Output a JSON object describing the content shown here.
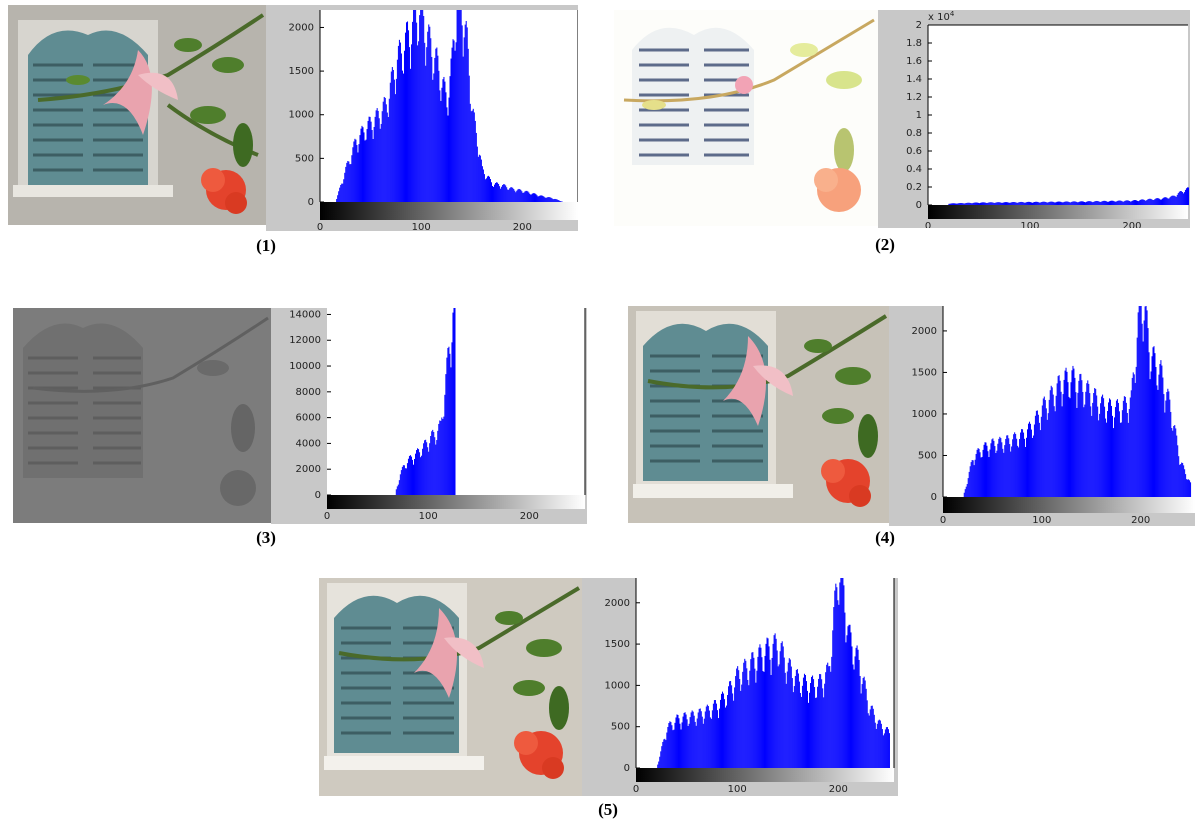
{
  "colors": {
    "histogram_bar": "#0000ff",
    "panel_bg": "#c8c8c8",
    "plot_bg": "#ffffff",
    "wall_gray": "#b7b4ad",
    "shutter_teal": "#5f8c92",
    "hibiscus_red": "#e4432c",
    "hibiscus_pink": "#e9a3ae",
    "leaf_green": "#4f7e2c"
  },
  "captions": [
    "(1)",
    "(2)",
    "(3)",
    "(4)",
    "(5)"
  ],
  "chart_data": [
    {
      "type": "bar",
      "caption": "(1)",
      "xlim": [
        0,
        255
      ],
      "ylim": [
        0,
        2200
      ],
      "xticks": [
        0,
        100,
        200
      ],
      "yticks": [
        0,
        500,
        1000,
        1500,
        2000
      ],
      "x": [
        15,
        25,
        35,
        45,
        55,
        65,
        75,
        85,
        95,
        100,
        105,
        115,
        125,
        130,
        135,
        140,
        145,
        150,
        160,
        170,
        180,
        190,
        200,
        210,
        220,
        230,
        240
      ],
      "values": [
        0,
        350,
        650,
        800,
        900,
        1050,
        1500,
        1750,
        2000,
        2100,
        1800,
        1500,
        1100,
        1500,
        2200,
        2100,
        1700,
        1000,
        350,
        200,
        180,
        140,
        120,
        90,
        60,
        40,
        0
      ]
    },
    {
      "type": "bar",
      "caption": "(2)",
      "xlim": [
        0,
        255
      ],
      "ylim": [
        0,
        20000
      ],
      "xticks": [
        0,
        100,
        200
      ],
      "yticks": [
        "0",
        "0.2",
        "0.4",
        "0.6",
        "0.8",
        "1",
        "1.2",
        "1.4",
        "1.6",
        "1.8",
        "2"
      ],
      "ytick_values": [
        0,
        2000,
        4000,
        6000,
        8000,
        10000,
        12000,
        14000,
        16000,
        18000,
        20000
      ],
      "y_multiplier": "x 10",
      "y_multiplier_exp": "4",
      "x": [
        20,
        50,
        100,
        150,
        200,
        230,
        240,
        245,
        250,
        255
      ],
      "values": [
        150,
        250,
        300,
        350,
        450,
        700,
        900,
        1200,
        1500,
        1700
      ]
    },
    {
      "type": "bar",
      "caption": "(3)",
      "xlim": [
        0,
        255
      ],
      "ylim": [
        0,
        14500
      ],
      "xticks": [
        0,
        100,
        200
      ],
      "yticks": [
        0,
        2000,
        4000,
        6000,
        8000,
        10000,
        12000,
        14000
      ],
      "x": [
        68,
        72,
        76,
        80,
        84,
        88,
        92,
        96,
        100,
        104,
        108,
        112,
        126
      ],
      "values": [
        400,
        1500,
        2200,
        2500,
        2800,
        3000,
        3300,
        3600,
        4000,
        4300,
        4600,
        5000,
        14500
      ]
    },
    {
      "type": "bar",
      "caption": "(4)",
      "xlim": [
        0,
        255
      ],
      "ylim": [
        0,
        2300
      ],
      "xticks": [
        0,
        100,
        200
      ],
      "yticks": [
        0,
        500,
        1000,
        1500,
        2000
      ],
      "x": [
        20,
        30,
        40,
        50,
        60,
        70,
        80,
        90,
        100,
        110,
        120,
        130,
        140,
        150,
        160,
        170,
        180,
        190,
        195,
        200,
        205,
        210,
        220,
        230,
        240,
        250
      ],
      "values": [
        0,
        450,
        550,
        600,
        620,
        650,
        700,
        800,
        1000,
        1150,
        1300,
        1350,
        1250,
        1150,
        1050,
        1000,
        1000,
        1100,
        1700,
        2300,
        2000,
        1600,
        1400,
        1000,
        400,
        150
      ]
    },
    {
      "type": "bar",
      "caption": "(5)",
      "xlim": [
        0,
        255
      ],
      "ylim": [
        0,
        2300
      ],
      "xticks": [
        0,
        100,
        200
      ],
      "yticks": [
        0,
        500,
        1000,
        1500,
        2000
      ],
      "x": [
        20,
        30,
        40,
        50,
        60,
        70,
        80,
        90,
        100,
        110,
        120,
        130,
        140,
        150,
        160,
        170,
        180,
        190,
        195,
        200,
        205,
        210,
        220,
        230,
        240,
        250
      ],
      "values": [
        0,
        450,
        550,
        580,
        600,
        650,
        720,
        850,
        1050,
        1150,
        1250,
        1350,
        1400,
        1150,
        1000,
        950,
        950,
        1100,
        1700,
        2300,
        2000,
        1500,
        1200,
        700,
        500,
        400
      ]
    }
  ]
}
